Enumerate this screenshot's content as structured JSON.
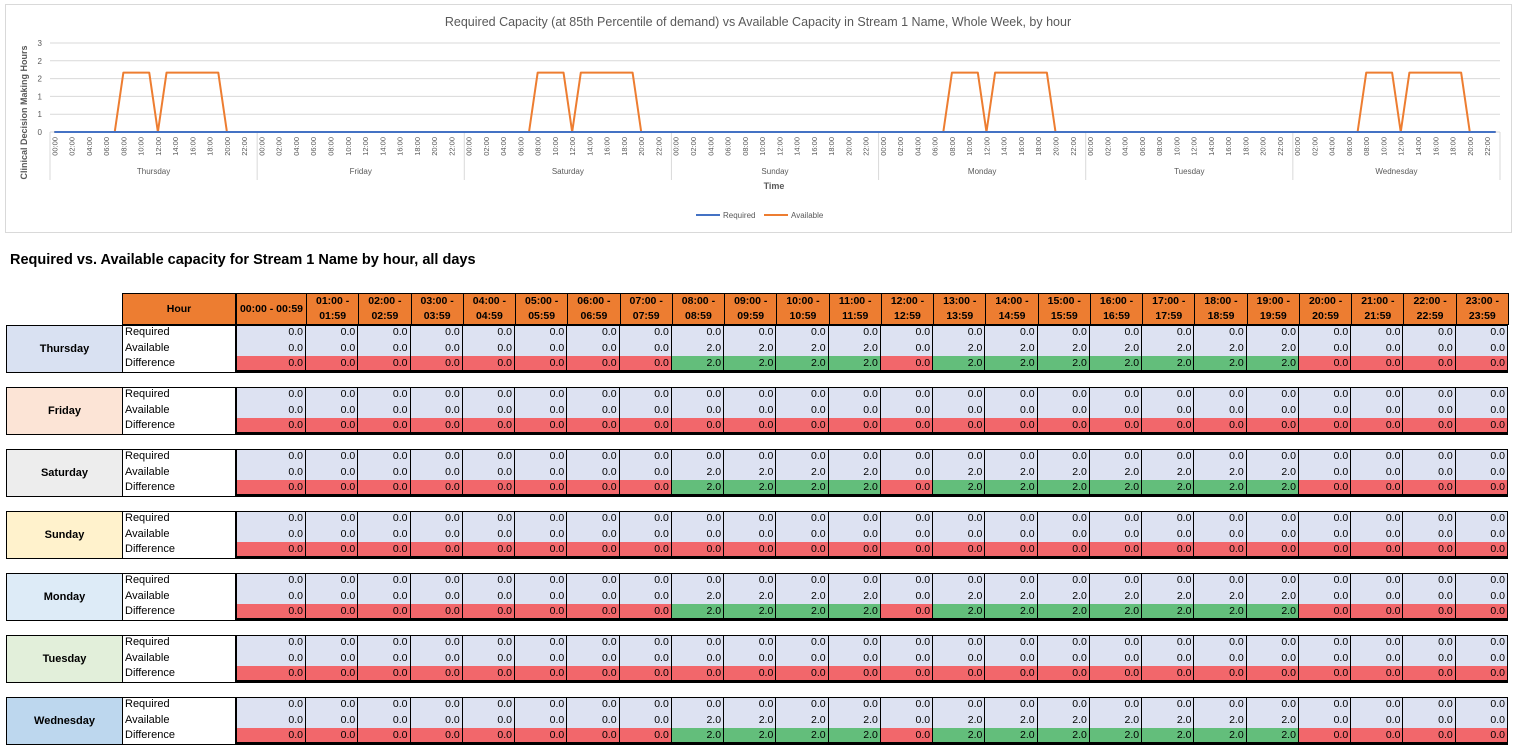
{
  "chart_data": {
    "type": "line",
    "title": "Required Capacity (at 85th Percentile of demand) vs Available Capacity in Stream 1 Name, Whole Week, by hour",
    "xlabel": "Time",
    "ylabel": "Clinical Decision Making Hours",
    "ylim": [
      0,
      3
    ],
    "yticks": [
      "0",
      "1",
      "1",
      "2",
      "2",
      "3"
    ],
    "hour_ticks": [
      "00:00",
      "02:00",
      "04:00",
      "06:00",
      "08:00",
      "10:00",
      "12:00",
      "14:00",
      "16:00",
      "18:00",
      "20:00",
      "22:00"
    ],
    "day_groups": [
      "Thursday",
      "Friday",
      "Saturday",
      "Sunday",
      "Monday",
      "Tuesday",
      "Wednesday"
    ],
    "series": [
      {
        "name": "Required",
        "color": "#4472c4",
        "pattern": [
          0,
          0,
          0,
          0,
          0,
          0,
          0,
          0,
          0,
          0,
          0,
          0,
          0,
          0,
          0,
          0,
          0,
          0,
          0,
          0,
          0,
          0,
          0,
          0
        ]
      },
      {
        "name": "Available",
        "color": "#ed7d31",
        "pattern": [
          0,
          0,
          0,
          0,
          0,
          0,
          0,
          0,
          2,
          2,
          2,
          2,
          0,
          2,
          2,
          2,
          2,
          2,
          2,
          2,
          0,
          0,
          0,
          0
        ]
      }
    ],
    "series_by_day": {
      "Thursday": {
        "required": [
          0,
          0,
          0,
          0,
          0,
          0,
          0,
          0,
          0,
          0,
          0,
          0,
          0,
          0,
          0,
          0,
          0,
          0,
          0,
          0,
          0,
          0,
          0,
          0
        ],
        "available": [
          0,
          0,
          0,
          0,
          0,
          0,
          0,
          0,
          2,
          2,
          2,
          2,
          0,
          2,
          2,
          2,
          2,
          2,
          2,
          2,
          0,
          0,
          0,
          0
        ]
      },
      "Friday": {
        "required": [
          0,
          0,
          0,
          0,
          0,
          0,
          0,
          0,
          0,
          0,
          0,
          0,
          0,
          0,
          0,
          0,
          0,
          0,
          0,
          0,
          0,
          0,
          0,
          0
        ],
        "available": [
          0,
          0,
          0,
          0,
          0,
          0,
          0,
          0,
          0,
          0,
          0,
          0,
          0,
          0,
          0,
          0,
          0,
          0,
          0,
          0,
          0,
          0,
          0,
          0
        ]
      },
      "Saturday": {
        "required": [
          0,
          0,
          0,
          0,
          0,
          0,
          0,
          0,
          0,
          0,
          0,
          0,
          0,
          0,
          0,
          0,
          0,
          0,
          0,
          0,
          0,
          0,
          0,
          0
        ],
        "available": [
          0,
          0,
          0,
          0,
          0,
          0,
          0,
          0,
          2,
          2,
          2,
          2,
          0,
          2,
          2,
          2,
          2,
          2,
          2,
          2,
          0,
          0,
          0,
          0
        ]
      },
      "Sunday": {
        "required": [
          0,
          0,
          0,
          0,
          0,
          0,
          0,
          0,
          0,
          0,
          0,
          0,
          0,
          0,
          0,
          0,
          0,
          0,
          0,
          0,
          0,
          0,
          0,
          0
        ],
        "available": [
          0,
          0,
          0,
          0,
          0,
          0,
          0,
          0,
          0,
          0,
          0,
          0,
          0,
          0,
          0,
          0,
          0,
          0,
          0,
          0,
          0,
          0,
          0,
          0
        ]
      },
      "Monday": {
        "required": [
          0,
          0,
          0,
          0,
          0,
          0,
          0,
          0,
          0,
          0,
          0,
          0,
          0,
          0,
          0,
          0,
          0,
          0,
          0,
          0,
          0,
          0,
          0,
          0
        ],
        "available": [
          0,
          0,
          0,
          0,
          0,
          0,
          0,
          0,
          2,
          2,
          2,
          2,
          0,
          2,
          2,
          2,
          2,
          2,
          2,
          2,
          0,
          0,
          0,
          0
        ]
      },
      "Tuesday": {
        "required": [
          0,
          0,
          0,
          0,
          0,
          0,
          0,
          0,
          0,
          0,
          0,
          0,
          0,
          0,
          0,
          0,
          0,
          0,
          0,
          0,
          0,
          0,
          0,
          0
        ],
        "available": [
          0,
          0,
          0,
          0,
          0,
          0,
          0,
          0,
          0,
          0,
          0,
          0,
          0,
          0,
          0,
          0,
          0,
          0,
          0,
          0,
          0,
          0,
          0,
          0
        ]
      },
      "Wednesday": {
        "required": [
          0,
          0,
          0,
          0,
          0,
          0,
          0,
          0,
          0,
          0,
          0,
          0,
          0,
          0,
          0,
          0,
          0,
          0,
          0,
          0,
          0,
          0,
          0,
          0
        ],
        "available": [
          0,
          0,
          0,
          0,
          0,
          0,
          0,
          0,
          2,
          2,
          2,
          2,
          0,
          2,
          2,
          2,
          2,
          2,
          2,
          2,
          0,
          0,
          0,
          0
        ]
      }
    },
    "legend": "bottom",
    "grid": true
  },
  "table": {
    "title": "Required vs. Available capacity for Stream 1 Name by hour, all days",
    "hour_header": "Hour",
    "hours": [
      [
        "00:00 - 00:59",
        ""
      ],
      [
        "01:00 -",
        "01:59"
      ],
      [
        "02:00 -",
        "02:59"
      ],
      [
        "03:00 -",
        "03:59"
      ],
      [
        "04:00 -",
        "04:59"
      ],
      [
        "05:00 -",
        "05:59"
      ],
      [
        "06:00 -",
        "06:59"
      ],
      [
        "07:00 -",
        "07:59"
      ],
      [
        "08:00 -",
        "08:59"
      ],
      [
        "09:00 -",
        "09:59"
      ],
      [
        "10:00 -",
        "10:59"
      ],
      [
        "11:00 -",
        "11:59"
      ],
      [
        "12:00 -",
        "12:59"
      ],
      [
        "13:00 -",
        "13:59"
      ],
      [
        "14:00 -",
        "14:59"
      ],
      [
        "15:00 -",
        "15:59"
      ],
      [
        "16:00 -",
        "16:59"
      ],
      [
        "17:00 -",
        "17:59"
      ],
      [
        "18:00 -",
        "18:59"
      ],
      [
        "19:00 -",
        "19:59"
      ],
      [
        "20:00 -",
        "20:59"
      ],
      [
        "21:00 -",
        "21:59"
      ],
      [
        "22:00 -",
        "22:59"
      ],
      [
        "23:00 -",
        "23:59"
      ]
    ],
    "row_labels": [
      "Required",
      "Available",
      "Difference"
    ],
    "days": [
      {
        "name": "Thursday",
        "color": "#d9e1f2",
        "required": [
          "0.0",
          "0.0",
          "0.0",
          "0.0",
          "0.0",
          "0.0",
          "0.0",
          "0.0",
          "0.0",
          "0.0",
          "0.0",
          "0.0",
          "0.0",
          "0.0",
          "0.0",
          "0.0",
          "0.0",
          "0.0",
          "0.0",
          "0.0",
          "0.0",
          "0.0",
          "0.0",
          "0.0"
        ],
        "available": [
          "0.0",
          "0.0",
          "0.0",
          "0.0",
          "0.0",
          "0.0",
          "0.0",
          "0.0",
          "2.0",
          "2.0",
          "2.0",
          "2.0",
          "0.0",
          "2.0",
          "2.0",
          "2.0",
          "2.0",
          "2.0",
          "2.0",
          "2.0",
          "0.0",
          "0.0",
          "0.0",
          "0.0"
        ],
        "difference": [
          "0.0",
          "0.0",
          "0.0",
          "0.0",
          "0.0",
          "0.0",
          "0.0",
          "0.0",
          "2.0",
          "2.0",
          "2.0",
          "2.0",
          "0.0",
          "2.0",
          "2.0",
          "2.0",
          "2.0",
          "2.0",
          "2.0",
          "2.0",
          "0.0",
          "0.0",
          "0.0",
          "0.0"
        ]
      },
      {
        "name": "Friday",
        "color": "#fce4d6",
        "required": [
          "0.0",
          "0.0",
          "0.0",
          "0.0",
          "0.0",
          "0.0",
          "0.0",
          "0.0",
          "0.0",
          "0.0",
          "0.0",
          "0.0",
          "0.0",
          "0.0",
          "0.0",
          "0.0",
          "0.0",
          "0.0",
          "0.0",
          "0.0",
          "0.0",
          "0.0",
          "0.0",
          "0.0"
        ],
        "available": [
          "0.0",
          "0.0",
          "0.0",
          "0.0",
          "0.0",
          "0.0",
          "0.0",
          "0.0",
          "0.0",
          "0.0",
          "0.0",
          "0.0",
          "0.0",
          "0.0",
          "0.0",
          "0.0",
          "0.0",
          "0.0",
          "0.0",
          "0.0",
          "0.0",
          "0.0",
          "0.0",
          "0.0"
        ],
        "difference": [
          "0.0",
          "0.0",
          "0.0",
          "0.0",
          "0.0",
          "0.0",
          "0.0",
          "0.0",
          "0.0",
          "0.0",
          "0.0",
          "0.0",
          "0.0",
          "0.0",
          "0.0",
          "0.0",
          "0.0",
          "0.0",
          "0.0",
          "0.0",
          "0.0",
          "0.0",
          "0.0",
          "0.0"
        ]
      },
      {
        "name": "Saturday",
        "color": "#ededed",
        "required": [
          "0.0",
          "0.0",
          "0.0",
          "0.0",
          "0.0",
          "0.0",
          "0.0",
          "0.0",
          "0.0",
          "0.0",
          "0.0",
          "0.0",
          "0.0",
          "0.0",
          "0.0",
          "0.0",
          "0.0",
          "0.0",
          "0.0",
          "0.0",
          "0.0",
          "0.0",
          "0.0",
          "0.0"
        ],
        "available": [
          "0.0",
          "0.0",
          "0.0",
          "0.0",
          "0.0",
          "0.0",
          "0.0",
          "0.0",
          "2.0",
          "2.0",
          "2.0",
          "2.0",
          "0.0",
          "2.0",
          "2.0",
          "2.0",
          "2.0",
          "2.0",
          "2.0",
          "2.0",
          "0.0",
          "0.0",
          "0.0",
          "0.0"
        ],
        "difference": [
          "0.0",
          "0.0",
          "0.0",
          "0.0",
          "0.0",
          "0.0",
          "0.0",
          "0.0",
          "2.0",
          "2.0",
          "2.0",
          "2.0",
          "0.0",
          "2.0",
          "2.0",
          "2.0",
          "2.0",
          "2.0",
          "2.0",
          "2.0",
          "0.0",
          "0.0",
          "0.0",
          "0.0"
        ]
      },
      {
        "name": "Sunday",
        "color": "#fff2cc",
        "required": [
          "0.0",
          "0.0",
          "0.0",
          "0.0",
          "0.0",
          "0.0",
          "0.0",
          "0.0",
          "0.0",
          "0.0",
          "0.0",
          "0.0",
          "0.0",
          "0.0",
          "0.0",
          "0.0",
          "0.0",
          "0.0",
          "0.0",
          "0.0",
          "0.0",
          "0.0",
          "0.0",
          "0.0"
        ],
        "available": [
          "0.0",
          "0.0",
          "0.0",
          "0.0",
          "0.0",
          "0.0",
          "0.0",
          "0.0",
          "0.0",
          "0.0",
          "0.0",
          "0.0",
          "0.0",
          "0.0",
          "0.0",
          "0.0",
          "0.0",
          "0.0",
          "0.0",
          "0.0",
          "0.0",
          "0.0",
          "0.0",
          "0.0"
        ],
        "difference": [
          "0.0",
          "0.0",
          "0.0",
          "0.0",
          "0.0",
          "0.0",
          "0.0",
          "0.0",
          "0.0",
          "0.0",
          "0.0",
          "0.0",
          "0.0",
          "0.0",
          "0.0",
          "0.0",
          "0.0",
          "0.0",
          "0.0",
          "0.0",
          "0.0",
          "0.0",
          "0.0",
          "0.0"
        ]
      },
      {
        "name": "Monday",
        "color": "#ddebf7",
        "required": [
          "0.0",
          "0.0",
          "0.0",
          "0.0",
          "0.0",
          "0.0",
          "0.0",
          "0.0",
          "0.0",
          "0.0",
          "0.0",
          "0.0",
          "0.0",
          "0.0",
          "0.0",
          "0.0",
          "0.0",
          "0.0",
          "0.0",
          "0.0",
          "0.0",
          "0.0",
          "0.0",
          "0.0"
        ],
        "available": [
          "0.0",
          "0.0",
          "0.0",
          "0.0",
          "0.0",
          "0.0",
          "0.0",
          "0.0",
          "2.0",
          "2.0",
          "2.0",
          "2.0",
          "0.0",
          "2.0",
          "2.0",
          "2.0",
          "2.0",
          "2.0",
          "2.0",
          "2.0",
          "0.0",
          "0.0",
          "0.0",
          "0.0"
        ],
        "difference": [
          "0.0",
          "0.0",
          "0.0",
          "0.0",
          "0.0",
          "0.0",
          "0.0",
          "0.0",
          "2.0",
          "2.0",
          "2.0",
          "2.0",
          "0.0",
          "2.0",
          "2.0",
          "2.0",
          "2.0",
          "2.0",
          "2.0",
          "2.0",
          "0.0",
          "0.0",
          "0.0",
          "0.0"
        ]
      },
      {
        "name": "Tuesday",
        "color": "#e2efda",
        "required": [
          "0.0",
          "0.0",
          "0.0",
          "0.0",
          "0.0",
          "0.0",
          "0.0",
          "0.0",
          "0.0",
          "0.0",
          "0.0",
          "0.0",
          "0.0",
          "0.0",
          "0.0",
          "0.0",
          "0.0",
          "0.0",
          "0.0",
          "0.0",
          "0.0",
          "0.0",
          "0.0",
          "0.0"
        ],
        "available": [
          "0.0",
          "0.0",
          "0.0",
          "0.0",
          "0.0",
          "0.0",
          "0.0",
          "0.0",
          "0.0",
          "0.0",
          "0.0",
          "0.0",
          "0.0",
          "0.0",
          "0.0",
          "0.0",
          "0.0",
          "0.0",
          "0.0",
          "0.0",
          "0.0",
          "0.0",
          "0.0",
          "0.0"
        ],
        "difference": [
          "0.0",
          "0.0",
          "0.0",
          "0.0",
          "0.0",
          "0.0",
          "0.0",
          "0.0",
          "0.0",
          "0.0",
          "0.0",
          "0.0",
          "0.0",
          "0.0",
          "0.0",
          "0.0",
          "0.0",
          "0.0",
          "0.0",
          "0.0",
          "0.0",
          "0.0",
          "0.0",
          "0.0"
        ]
      },
      {
        "name": "Wednesday",
        "color": "#bdd7ee",
        "required": [
          "0.0",
          "0.0",
          "0.0",
          "0.0",
          "0.0",
          "0.0",
          "0.0",
          "0.0",
          "0.0",
          "0.0",
          "0.0",
          "0.0",
          "0.0",
          "0.0",
          "0.0",
          "0.0",
          "0.0",
          "0.0",
          "0.0",
          "0.0",
          "0.0",
          "0.0",
          "0.0",
          "0.0"
        ],
        "available": [
          "0.0",
          "0.0",
          "0.0",
          "0.0",
          "0.0",
          "0.0",
          "0.0",
          "0.0",
          "2.0",
          "2.0",
          "2.0",
          "2.0",
          "0.0",
          "2.0",
          "2.0",
          "2.0",
          "2.0",
          "2.0",
          "2.0",
          "2.0",
          "0.0",
          "0.0",
          "0.0",
          "0.0"
        ],
        "difference": [
          "0.0",
          "0.0",
          "0.0",
          "0.0",
          "0.0",
          "0.0",
          "0.0",
          "0.0",
          "2.0",
          "2.0",
          "2.0",
          "2.0",
          "0.0",
          "2.0",
          "2.0",
          "2.0",
          "2.0",
          "2.0",
          "2.0",
          "2.0",
          "0.0",
          "0.0",
          "0.0",
          "0.0"
        ]
      }
    ],
    "colors": {
      "header": "#ed7d31",
      "value_bg": "#dde2f2",
      "positive": "#63be7b",
      "negative": "#f2676b"
    }
  }
}
